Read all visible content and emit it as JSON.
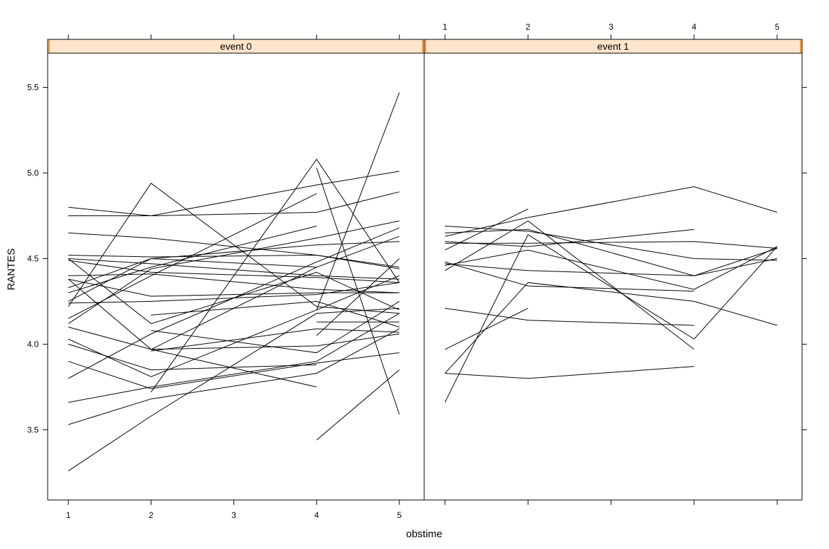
{
  "chart_data": {
    "type": "line",
    "xlabel": "obstime",
    "ylabel": "RANTES",
    "x_ticks": [
      1,
      2,
      3,
      4,
      5
    ],
    "y_ticks": [
      3.5,
      4.0,
      4.5,
      5.0,
      5.5
    ],
    "xlim": [
      0.75,
      5.3
    ],
    "ylim": [
      3.09,
      5.7
    ],
    "strip_color": "#ffe5cc",
    "line_color": "#000000",
    "panels": [
      {
        "label": "event 0",
        "series": [
          {
            "x": [
              1,
              2,
              4,
              5
            ],
            "y": [
              4.8,
              4.75,
              4.77,
              4.89
            ]
          },
          {
            "x": [
              1,
              2,
              4,
              5
            ],
            "y": [
              4.75,
              4.75,
              4.93,
              5.01
            ]
          },
          {
            "x": [
              1,
              2,
              4,
              5
            ],
            "y": [
              4.65,
              4.62,
              4.52,
              4.45
            ]
          },
          {
            "x": [
              1,
              2,
              4,
              5
            ],
            "y": [
              4.52,
              4.51,
              4.52,
              4.44
            ]
          },
          {
            "x": [
              1,
              2,
              4,
              5
            ],
            "y": [
              4.5,
              4.47,
              4.4,
              4.38
            ]
          },
          {
            "x": [
              1,
              2,
              4,
              5
            ],
            "y": [
              4.49,
              4.42,
              4.39,
              4.36
            ]
          },
          {
            "x": [
              1,
              2,
              4,
              5
            ],
            "y": [
              4.4,
              4.41,
              4.32,
              4.3
            ]
          },
          {
            "x": [
              1,
              2,
              4,
              5
            ],
            "y": [
              4.38,
              4.28,
              4.3,
              4.3
            ]
          },
          {
            "x": [
              1,
              2,
              4,
              5
            ],
            "y": [
              4.24,
              4.25,
              4.29,
              4.36
            ]
          },
          {
            "x": [
              1,
              2,
              4,
              5
            ],
            "y": [
              4.5,
              4.12,
              4.42,
              4.2
            ]
          },
          {
            "x": [
              1,
              2,
              4,
              5
            ],
            "y": [
              4.22,
              4.94,
              4.22,
              4.18
            ]
          },
          {
            "x": [
              1,
              2,
              4,
              5
            ],
            "y": [
              4.1,
              3.97,
              3.99,
              4.06
            ]
          },
          {
            "x": [
              1,
              2,
              4,
              5
            ],
            "y": [
              4.03,
              3.81,
              4.2,
              4.4
            ]
          },
          {
            "x": [
              1,
              2,
              4,
              5
            ],
            "y": [
              3.9,
              3.74,
              3.89,
              3.95
            ]
          },
          {
            "x": [
              1,
              2,
              4,
              5
            ],
            "y": [
              3.66,
              3.75,
              3.9,
              4.18
            ]
          },
          {
            "x": [
              1,
              2,
              4,
              5
            ],
            "y": [
              3.53,
              3.68,
              3.83,
              4.09
            ]
          },
          {
            "x": [
              1,
              2,
              4,
              5
            ],
            "y": [
              3.26,
              3.58,
              4.18,
              4.21
            ]
          },
          {
            "x": [
              1,
              2,
              4,
              5
            ],
            "y": [
              3.8,
              4.06,
              4.48,
              4.68
            ]
          },
          {
            "x": [
              1,
              2,
              4,
              5
            ],
            "y": [
              4.12,
              4.44,
              4.62,
              4.72
            ]
          },
          {
            "x": [
              1,
              2,
              4,
              5
            ],
            "y": [
              4.33,
              4.5,
              4.58,
              4.6
            ]
          },
          {
            "x": [
              1,
              2,
              4
            ],
            "y": [
              4.3,
              4.45,
              4.69
            ]
          },
          {
            "x": [
              1,
              2,
              4
            ],
            "y": [
              4.15,
              4.4,
              4.88
            ]
          },
          {
            "x": [
              1,
              2,
              4
            ],
            "y": [
              4.38,
              3.97,
              3.75
            ]
          },
          {
            "x": [
              1,
              2,
              4
            ],
            "y": [
              4.0,
              3.85,
              3.88
            ]
          },
          {
            "x": [
              1,
              2,
              4
            ],
            "y": [
              4.25,
              4.5,
              4.45
            ]
          },
          {
            "x": [
              2,
              4,
              5
            ],
            "y": [
              4.17,
              4.25,
              4.1
            ]
          },
          {
            "x": [
              2,
              4,
              5
            ],
            "y": [
              3.96,
              4.09,
              4.07
            ]
          },
          {
            "x": [
              2,
              4,
              5
            ],
            "y": [
              3.72,
              5.08,
              4.36
            ]
          },
          {
            "x": [
              2,
              4,
              5
            ],
            "y": [
              4.08,
              3.95,
              4.25
            ]
          },
          {
            "x": [
              2,
              4,
              5
            ],
            "y": [
              3.97,
              4.45,
              4.63
            ]
          },
          {
            "x": [
              4,
              5
            ],
            "y": [
              4.2,
              5.47
            ]
          },
          {
            "x": [
              4,
              5
            ],
            "y": [
              5.03,
              3.59
            ]
          },
          {
            "x": [
              4,
              5
            ],
            "y": [
              3.44,
              3.85
            ]
          },
          {
            "x": [
              4,
              5
            ],
            "y": [
              4.05,
              4.5
            ]
          },
          {
            "x": [
              4,
              5
            ],
            "y": [
              4.13,
              4.13
            ]
          }
        ]
      },
      {
        "label": "event 1",
        "series": [
          {
            "x": [
              1,
              2,
              4,
              5
            ],
            "y": [
              4.63,
              4.74,
              4.92,
              4.77
            ]
          },
          {
            "x": [
              1,
              2,
              4,
              5
            ],
            "y": [
              4.59,
              4.59,
              4.6,
              4.56
            ]
          },
          {
            "x": [
              1,
              2,
              4,
              5
            ],
            "y": [
              4.47,
              4.43,
              4.4,
              4.56
            ]
          },
          {
            "x": [
              1,
              2,
              4,
              5
            ],
            "y": [
              4.46,
              4.55,
              4.32,
              4.57
            ]
          },
          {
            "x": [
              1,
              2,
              4,
              5
            ],
            "y": [
              4.69,
              4.66,
              4.5,
              4.49
            ]
          },
          {
            "x": [
              1,
              2,
              4,
              5
            ],
            "y": [
              4.65,
              4.67,
              4.4,
              4.5
            ]
          },
          {
            "x": [
              1,
              2,
              4,
              5
            ],
            "y": [
              3.83,
              4.36,
              4.25,
              4.11
            ]
          },
          {
            "x": [
              1,
              2,
              4,
              5
            ],
            "y": [
              3.66,
              4.64,
              4.03,
              4.57
            ]
          },
          {
            "x": [
              1,
              2,
              4
            ],
            "y": [
              4.43,
              4.72,
              3.97
            ]
          },
          {
            "x": [
              1,
              2,
              4
            ],
            "y": [
              4.48,
              4.34,
              4.31
            ]
          },
          {
            "x": [
              1,
              2,
              4
            ],
            "y": [
              4.21,
              4.14,
              4.11
            ]
          },
          {
            "x": [
              1,
              2,
              4
            ],
            "y": [
              3.83,
              3.8,
              3.87
            ]
          },
          {
            "x": [
              1,
              2,
              4
            ],
            "y": [
              4.6,
              4.57,
              4.67
            ]
          },
          {
            "x": [
              1,
              2
            ],
            "y": [
              3.97,
              4.21
            ]
          },
          {
            "x": [
              1,
              2
            ],
            "y": [
              4.55,
              4.79
            ]
          }
        ]
      }
    ]
  }
}
